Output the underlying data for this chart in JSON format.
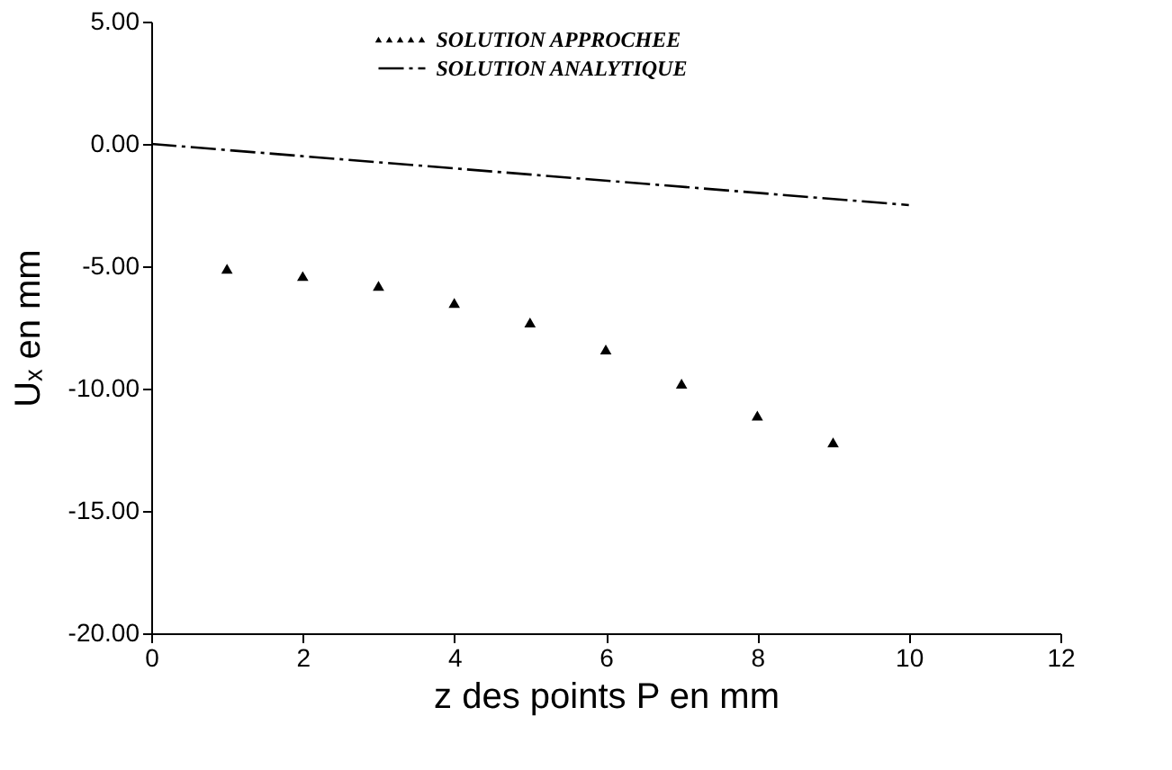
{
  "chart_data": {
    "type": "scatter",
    "xlabel": "z des points P en mm",
    "ylabel": "Uₓ en mm",
    "xlim": [
      0,
      12
    ],
    "xticks": [
      0,
      2,
      4,
      6,
      8,
      10,
      12
    ],
    "ylim": [
      -20,
      5
    ],
    "yticks": [
      {
        "value": 5,
        "label": "5.00"
      },
      {
        "value": 0,
        "label": "0.00"
      },
      {
        "value": -5,
        "label": "-5.00"
      },
      {
        "value": -10,
        "label": "-10.00"
      },
      {
        "value": -15,
        "label": "-15.00"
      },
      {
        "value": -20,
        "label": "-20.00"
      }
    ],
    "grid": false,
    "legend": "top",
    "series": [
      {
        "name": "SOLUTION APPROCHEE",
        "marker": "triangle",
        "color": "#000000",
        "x": [
          1,
          2,
          3,
          4,
          5,
          6,
          7,
          8,
          9
        ],
        "values": [
          -5.1,
          -5.4,
          -5.8,
          -6.5,
          -7.3,
          -8.4,
          -9.8,
          -11.1,
          -12.2
        ]
      },
      {
        "name": "SOLUTION ANALYTIQUE",
        "type": "line",
        "line_style": "dashed",
        "color": "#000000",
        "x": [
          0,
          4,
          10
        ],
        "values": [
          0,
          -1.0,
          -2.5
        ]
      }
    ]
  }
}
